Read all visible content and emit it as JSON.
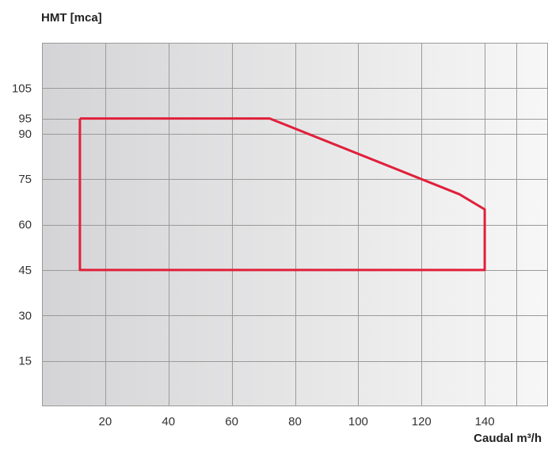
{
  "chart_data": {
    "type": "line",
    "title": "",
    "ylabel": "HMT [mca]",
    "xlabel": "Caudal m³/h",
    "xlim": [
      0,
      160
    ],
    "ylim": [
      0,
      120
    ],
    "x_ticks": [
      20,
      40,
      60,
      80,
      100,
      120,
      140
    ],
    "y_ticks": [
      15,
      30,
      45,
      60,
      75,
      90,
      95,
      105
    ],
    "grid": true,
    "legend": "none",
    "background_gradient": [
      "#d4d4d6",
      "#f7f7f7"
    ],
    "series": [
      {
        "color": "#e0203a",
        "x": [
          12,
          72,
          132,
          140,
          140,
          12,
          12
        ],
        "y": [
          95,
          95,
          70,
          65,
          45,
          45,
          95
        ]
      }
    ]
  }
}
